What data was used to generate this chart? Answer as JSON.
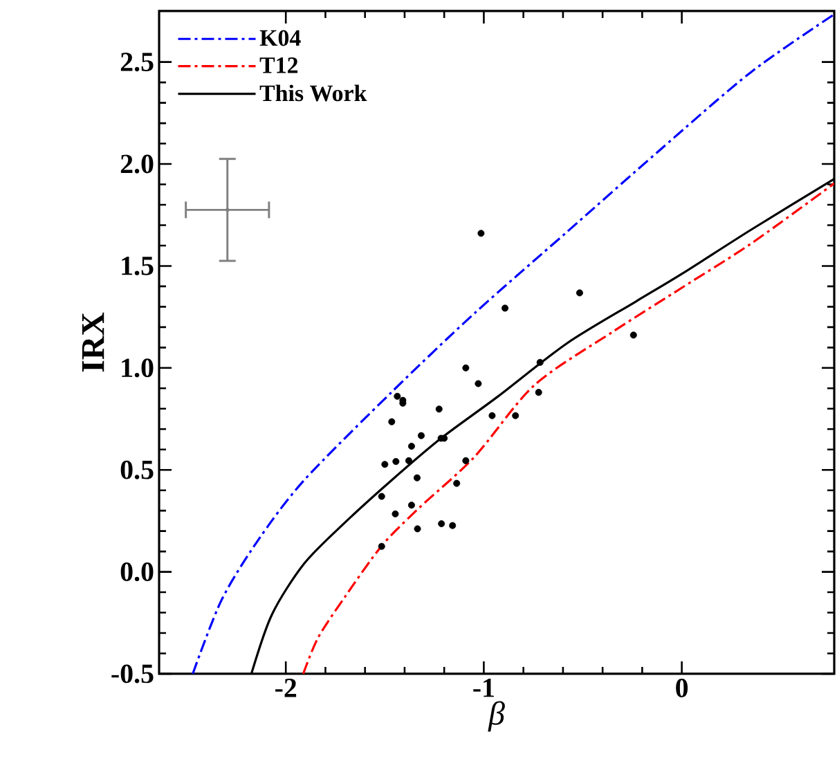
{
  "chart_data": {
    "type": "line",
    "xlabel": "β",
    "ylabel": "IRX",
    "xlim": [
      -2.64,
      0.77
    ],
    "ylim": [
      -0.5,
      2.75
    ],
    "xticks": [
      -2,
      -1,
      0
    ],
    "yticks": [
      -0.5,
      {
        "value": 0,
        "label": "0.0"
      },
      0.5,
      {
        "value": 1,
        "label": "1.0"
      },
      1.5,
      {
        "value": 2,
        "label": "2.0"
      },
      2.5
    ],
    "grid": false,
    "legend": "top left",
    "line_style": "solid",
    "marker": "none",
    "series": [
      {
        "name": "K04",
        "color": "#0000ff",
        "line_style": "dashdot",
        "x": [
          -2.47,
          -2.326,
          -2.14,
          -1.907,
          -1.465,
          -1.047,
          -0.581,
          -0.116,
          0.349,
          0.77
        ],
        "values": [
          -0.5,
          -0.141,
          0.155,
          0.45,
          0.882,
          1.268,
          1.666,
          2.064,
          2.45,
          2.734
        ]
      },
      {
        "name": "T12",
        "color": "#ff0000",
        "line_style": "dashdot",
        "x": [
          -1.912,
          -1.837,
          -1.698,
          -1.512,
          -1.326,
          -1.047,
          -0.744,
          -0.349,
          0,
          0.349,
          0.77
        ],
        "values": [
          -0.5,
          -0.323,
          -0.118,
          0.132,
          0.314,
          0.564,
          0.916,
          1.177,
          1.393,
          1.609,
          1.905
        ]
      },
      {
        "name": "This Work",
        "color": "#000000",
        "x": [
          -2.174,
          -2.07,
          -1.907,
          -1.698,
          -1.465,
          -1.216,
          -0.93,
          -0.581,
          -0.233,
          0,
          0.349,
          0.77
        ],
        "values": [
          -0.5,
          -0.209,
          0.041,
          0.245,
          0.45,
          0.655,
          0.859,
          1.12,
          1.325,
          1.461,
          1.677,
          1.927
        ]
      },
      {
        "type": "scatter",
        "marker": "circle",
        "color": "#000000",
        "x": [
          -1.014,
          -0.516,
          -0.893,
          -0.244,
          -1.091,
          -0.716,
          -1.028,
          -0.723,
          -1.437,
          -1.409,
          -1.409,
          -1.226,
          -1.465,
          -0.958,
          -0.84,
          -1.316,
          -1.216,
          -1.2,
          -1.365,
          -1.5,
          -1.444,
          -1.379,
          -1.091,
          -1.337,
          -1.137,
          -1.516,
          -1.365,
          -1.447,
          -1.214,
          -1.158,
          -1.335,
          -1.516
        ],
        "values": [
          1.66,
          1.368,
          1.293,
          1.161,
          1.0,
          1.027,
          0.923,
          0.88,
          0.861,
          0.841,
          0.827,
          0.798,
          0.736,
          0.766,
          0.766,
          0.668,
          0.655,
          0.655,
          0.616,
          0.527,
          0.541,
          0.545,
          0.545,
          0.461,
          0.434,
          0.37,
          0.327,
          0.284,
          0.236,
          0.227,
          0.211,
          0.125
        ]
      },
      {
        "type": "scatter",
        "marker": "circle",
        "color": "#808080",
        "x": [
          -2.295
        ],
        "values": [
          1.775
        ],
        "errors": [
          0.25
        ],
        "xerrors": [
          0.21
        ]
      }
    ]
  }
}
